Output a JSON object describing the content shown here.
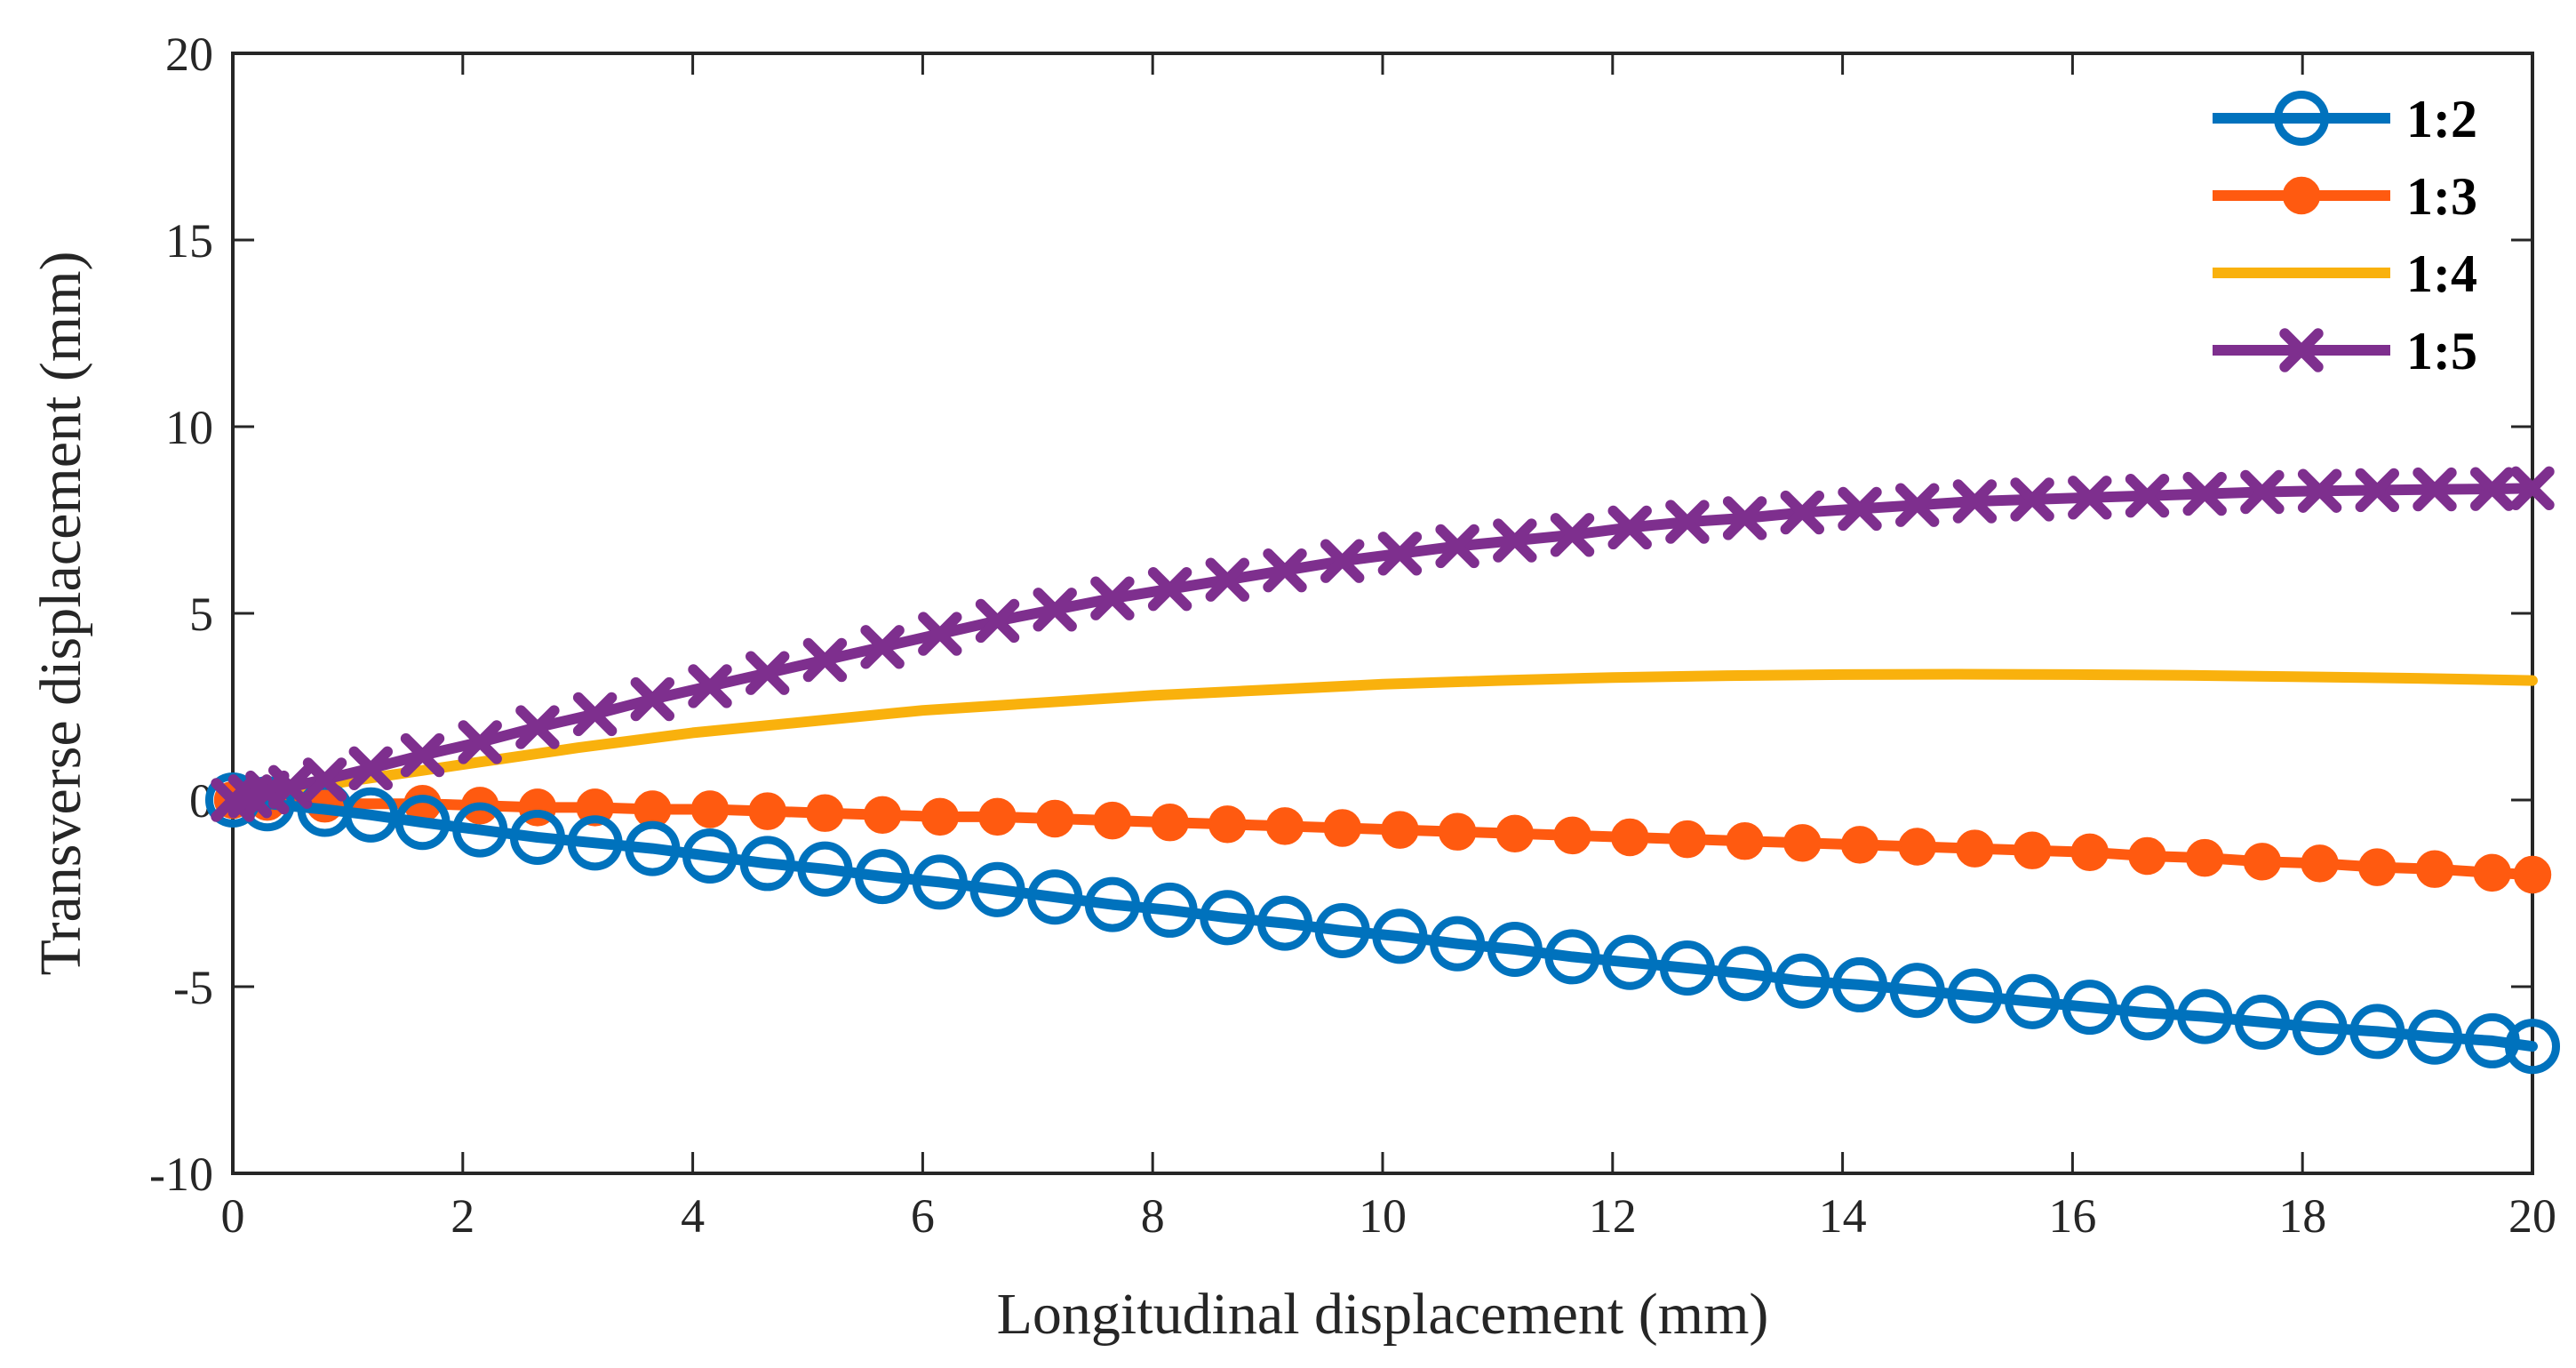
{
  "chart_data": {
    "type": "line",
    "title": "",
    "xlabel": "Longitudinal displacement  (mm)",
    "ylabel": "Transverse displacement  (mm)",
    "xlim": [
      0,
      20
    ],
    "ylim": [
      -10,
      20
    ],
    "xticks": [
      0,
      2,
      4,
      6,
      8,
      10,
      12,
      14,
      16,
      18,
      20
    ],
    "yticks": [
      -10,
      -5,
      0,
      5,
      10,
      15,
      20
    ],
    "xtick_labels": [
      "0",
      "2",
      "4",
      "6",
      "8",
      "10",
      "12",
      "14",
      "16",
      "18",
      "20"
    ],
    "ytick_labels": [
      "-10",
      "-5",
      "0",
      "5",
      "10",
      "15",
      "20"
    ],
    "grid": false,
    "legend_position": "top-right",
    "series": [
      {
        "name": "1:2",
        "color": "#0072BD",
        "marker": "circle-open",
        "x": [
          0,
          0.3,
          0.8,
          1.2,
          1.65,
          2.15,
          2.65,
          3.15,
          3.65,
          4.15,
          4.65,
          5.15,
          5.65,
          6.15,
          6.65,
          7.15,
          7.65,
          8.15,
          8.65,
          9.15,
          9.65,
          10.15,
          10.65,
          11.15,
          11.65,
          12.15,
          12.65,
          13.15,
          13.65,
          14.15,
          14.65,
          15.15,
          15.65,
          16.15,
          16.65,
          17.15,
          17.65,
          18.15,
          18.65,
          19.15,
          19.65,
          20
        ],
        "y": [
          0,
          -0.1,
          -0.25,
          -0.4,
          -0.6,
          -0.8,
          -1.0,
          -1.15,
          -1.3,
          -1.5,
          -1.7,
          -1.85,
          -2.05,
          -2.2,
          -2.4,
          -2.6,
          -2.8,
          -2.95,
          -3.15,
          -3.3,
          -3.5,
          -3.65,
          -3.85,
          -4.0,
          -4.2,
          -4.35,
          -4.5,
          -4.65,
          -4.85,
          -4.95,
          -5.1,
          -5.25,
          -5.4,
          -5.55,
          -5.7,
          -5.8,
          -5.95,
          -6.1,
          -6.2,
          -6.35,
          -6.45,
          -6.6
        ]
      },
      {
        "name": "1:3",
        "color": "#FF5A10",
        "marker": "circle-filled",
        "x": [
          0,
          0.3,
          0.8,
          1.65,
          2.15,
          2.65,
          3.15,
          3.65,
          4.15,
          4.65,
          5.15,
          5.65,
          6.15,
          6.65,
          7.15,
          7.65,
          8.15,
          8.65,
          9.15,
          9.65,
          10.15,
          10.65,
          11.15,
          11.65,
          12.15,
          12.65,
          13.15,
          13.65,
          14.15,
          14.65,
          15.15,
          15.65,
          16.15,
          16.65,
          17.15,
          17.65,
          18.15,
          18.65,
          19.15,
          19.65,
          20
        ],
        "y": [
          0,
          -0.05,
          -0.1,
          -0.1,
          -0.15,
          -0.2,
          -0.2,
          -0.25,
          -0.25,
          -0.3,
          -0.35,
          -0.4,
          -0.45,
          -0.45,
          -0.5,
          -0.55,
          -0.6,
          -0.65,
          -0.7,
          -0.75,
          -0.8,
          -0.85,
          -0.9,
          -0.95,
          -1.0,
          -1.05,
          -1.1,
          -1.15,
          -1.2,
          -1.25,
          -1.3,
          -1.35,
          -1.4,
          -1.5,
          -1.55,
          -1.65,
          -1.7,
          -1.8,
          -1.85,
          -1.95,
          -2.0
        ]
      },
      {
        "name": "1:4",
        "color": "#F9B10D",
        "marker": "none",
        "x": [
          0,
          1,
          2,
          3,
          4,
          5,
          6,
          7,
          8,
          9,
          10,
          11,
          12,
          13,
          14,
          15,
          16,
          17,
          18,
          19,
          20
        ],
        "y": [
          0,
          0.5,
          0.95,
          1.4,
          1.8,
          2.1,
          2.4,
          2.6,
          2.8,
          2.95,
          3.1,
          3.2,
          3.28,
          3.33,
          3.36,
          3.37,
          3.36,
          3.34,
          3.3,
          3.26,
          3.2
        ]
      },
      {
        "name": "1:5",
        "color": "#7E2F8E",
        "marker": "x-filled",
        "x": [
          0,
          0.15,
          0.3,
          0.5,
          0.8,
          1.2,
          1.65,
          2.15,
          2.65,
          3.15,
          3.65,
          4.15,
          4.65,
          5.15,
          5.65,
          6.15,
          6.65,
          7.15,
          7.65,
          8.15,
          8.65,
          9.15,
          9.65,
          10.15,
          10.65,
          11.15,
          11.65,
          12.15,
          12.65,
          13.15,
          13.65,
          14.15,
          14.65,
          15.15,
          15.65,
          16.15,
          16.65,
          17.15,
          17.65,
          18.15,
          18.65,
          19.15,
          19.65,
          20
        ],
        "y": [
          0,
          0.1,
          0.2,
          0.35,
          0.55,
          0.85,
          1.2,
          1.55,
          1.95,
          2.3,
          2.7,
          3.05,
          3.4,
          3.75,
          4.1,
          4.45,
          4.8,
          5.1,
          5.4,
          5.65,
          5.9,
          6.15,
          6.4,
          6.6,
          6.8,
          6.95,
          7.1,
          7.3,
          7.45,
          7.55,
          7.7,
          7.8,
          7.9,
          8.0,
          8.05,
          8.1,
          8.15,
          8.2,
          8.25,
          8.28,
          8.3,
          8.32,
          8.33,
          8.35
        ]
      }
    ]
  }
}
